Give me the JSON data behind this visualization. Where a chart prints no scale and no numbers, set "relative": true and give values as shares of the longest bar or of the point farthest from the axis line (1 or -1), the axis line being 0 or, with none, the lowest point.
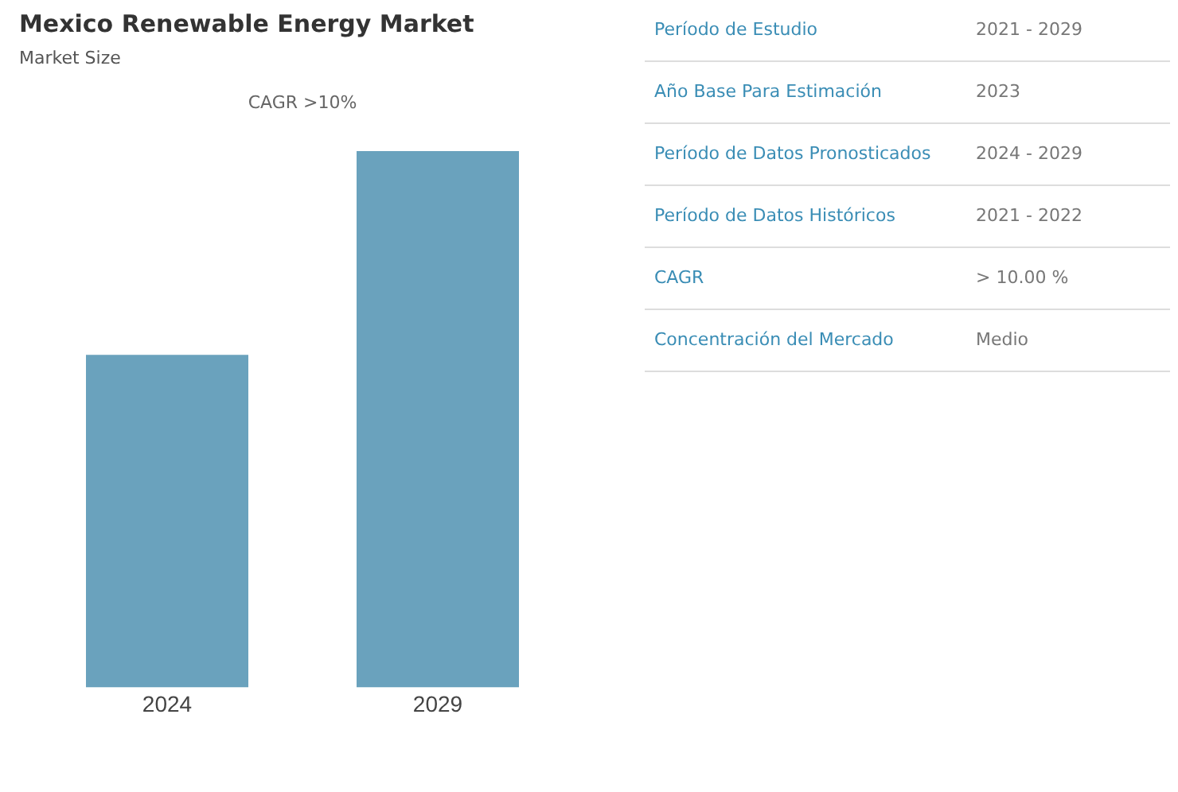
{
  "chart_data": [
    {
      "type": "bar",
      "title": "Mexico Renewable Energy Market",
      "subtitle": "Market Size",
      "annotations": [
        "CAGR >10%"
      ],
      "categories": [
        "2024",
        "2029"
      ],
      "values": [
        0.62,
        1
      ],
      "color": "#6aa2bd",
      "relative": true,
      "grid": false,
      "legend": false
    },
    {
      "type": "other",
      "annotations": [
        "Período de Estudio",
        "2021 - 2029",
        "Año Base Para Estimación",
        "2023",
        "Período de Datos Pronosticados",
        "2024 - 2029",
        "Período de Datos Históricos",
        "2021 - 2022",
        "CAGR",
        "> 10.00 %",
        "Concentración del Mercado",
        "Medio"
      ]
    }
  ]
}
